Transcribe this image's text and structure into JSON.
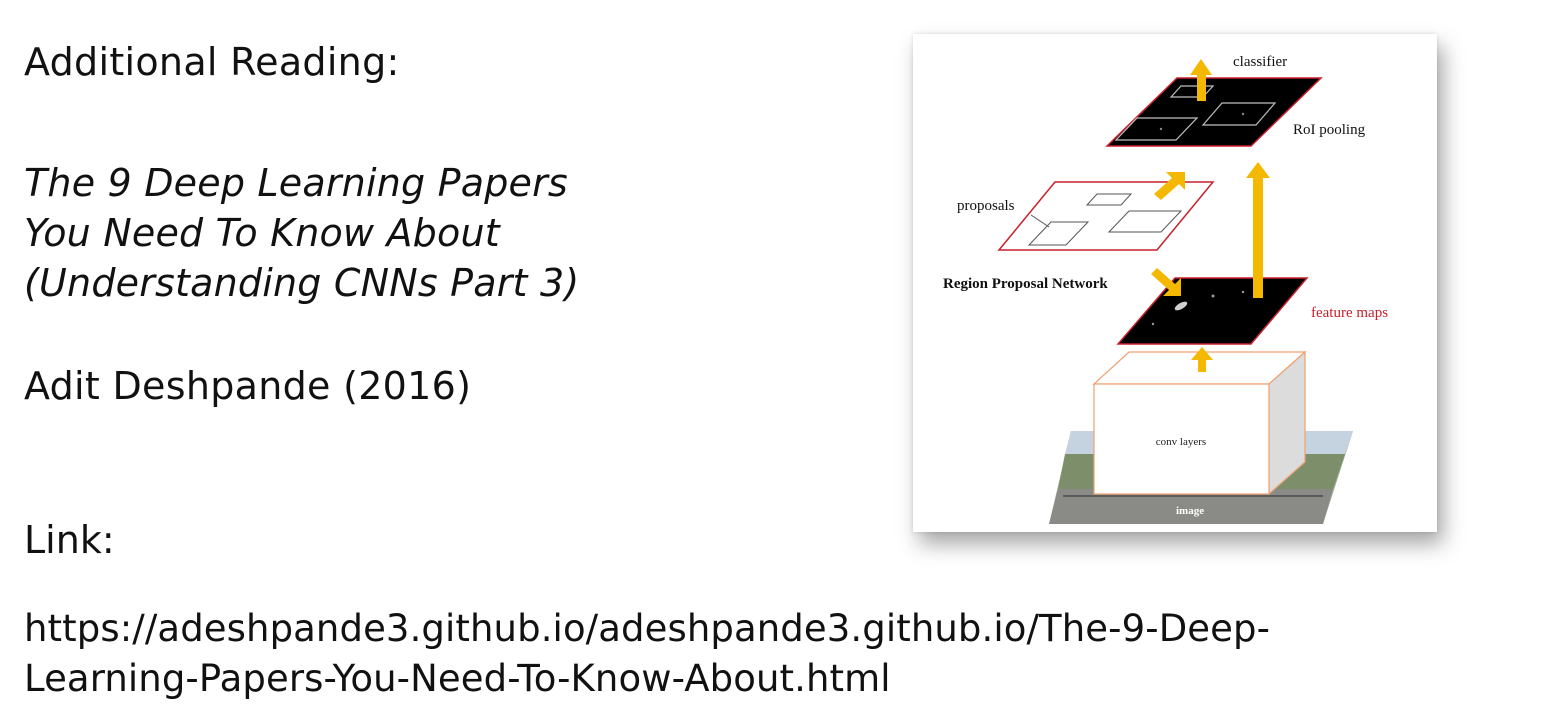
{
  "slide": {
    "heading": "Additional Reading:",
    "title_lines": [
      "The 9 Deep Learning Papers",
      "You Need To Know About",
      "(Understanding CNNs Part 3)"
    ],
    "author": "Adit Deshpande (2016)",
    "link_label": "Link:",
    "url_lines": [
      "https://adeshpande3.github.io/adeshpande3.github.io/The-9-Deep-",
      "Learning-Papers-You-Need-To-Know-About.html"
    ]
  },
  "figure": {
    "labels": {
      "classifier": "classifier",
      "roi_pooling": "RoI pooling",
      "proposals": "proposals",
      "rpn": "Region Proposal Network",
      "feature_maps": "feature maps",
      "conv_layers": "conv layers",
      "image": "image"
    },
    "colors": {
      "arrow": "#f5b800",
      "accent_red": "#c8202a",
      "box_outline": "#f0a070"
    }
  }
}
